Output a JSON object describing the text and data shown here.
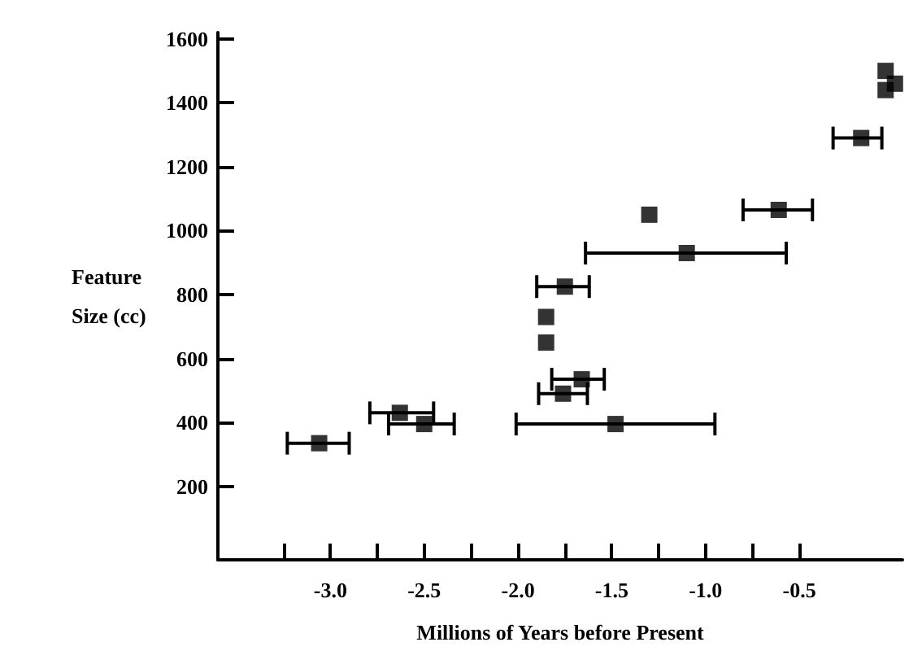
{
  "chart_data": {
    "type": "scatter",
    "xlabel": "Millions of Years before Present",
    "ylabel": "Feature\nSize (cc)",
    "x": [
      -3.06,
      -2.63,
      -2.5,
      -1.48,
      -1.76,
      -1.66,
      -1.85,
      -1.85,
      -1.75,
      -1.1,
      -1.3,
      -0.61,
      -0.17,
      -0.04,
      -0.04,
      0.01
    ],
    "values": [
      335,
      430,
      395,
      395,
      490,
      535,
      650,
      730,
      825,
      930,
      1050,
      1065,
      1290,
      1500,
      1440,
      1460
    ],
    "xerrors": [
      [
        -3.23,
        -2.9
      ],
      [
        -2.79,
        -2.45
      ],
      [
        -2.69,
        -2.34
      ],
      [
        -2.01,
        -0.95
      ],
      [
        -1.89,
        -1.63
      ],
      [
        -1.82,
        -1.54
      ],
      null,
      null,
      [
        -1.9,
        -1.62
      ],
      [
        -1.64,
        -0.57
      ],
      null,
      [
        -0.8,
        -0.43
      ],
      [
        -0.32,
        -0.06
      ],
      null,
      null,
      null
    ],
    "color": "#000000",
    "marker": "square",
    "grid": false,
    "xlim": [
      -3.6,
      0.05
    ],
    "xticks": [
      {
        "value": -3,
        "label": "-3.0"
      },
      {
        "value": -2.75,
        "label": null
      },
      -2.5,
      {
        "value": -2.25,
        "label": null
      },
      {
        "value": -2,
        "label": "-2.0"
      },
      {
        "value": -1.75,
        "label": null
      },
      -1.5,
      {
        "value": -1.25,
        "label": null
      },
      {
        "value": -1,
        "label": "-1.0"
      },
      {
        "value": -0.75,
        "label": null
      },
      -0.5,
      {
        "value": -3.25,
        "label": null
      }
    ],
    "ylim": [
      -30,
      1620
    ],
    "yticks": [
      200,
      400,
      600,
      800,
      1000,
      1200,
      1400,
      1600
    ]
  }
}
